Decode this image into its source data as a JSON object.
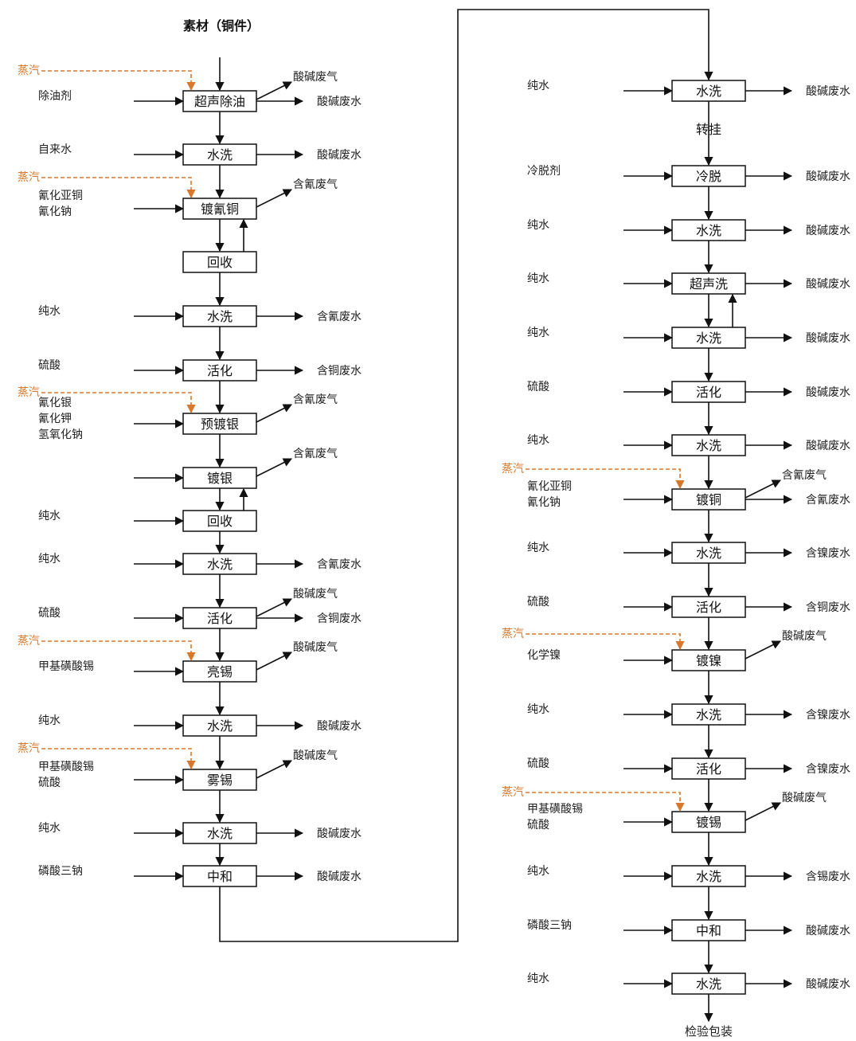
{
  "title": "素材（铜件）",
  "end_label": "检验包装",
  "steam_label": "蒸汽",
  "transfer_label": "转挂",
  "colors": {
    "line": "#111111",
    "steam": "#d9782d"
  },
  "left_column": [
    {
      "process": "超声除油",
      "inputs": [
        "除油剂"
      ],
      "outputs": [
        "酸碱废气",
        "酸碱废水"
      ],
      "steam": true
    },
    {
      "process": "水洗",
      "inputs": [
        "自来水"
      ],
      "outputs": [
        "酸碱废水"
      ]
    },
    {
      "process": "镀氰铜",
      "inputs": [
        "氰化亚铜",
        "氰化钠"
      ],
      "outputs": [
        "含氰废气"
      ],
      "steam": true
    },
    {
      "process": "回收",
      "inputs": [],
      "outputs": []
    },
    {
      "process": "水洗",
      "inputs": [
        "纯水"
      ],
      "outputs": [
        "含氰废水"
      ]
    },
    {
      "process": "活化",
      "inputs": [
        "硫酸"
      ],
      "outputs": [
        "含铜废水"
      ]
    },
    {
      "process": "预镀银",
      "inputs": [
        "氰化银",
        "氰化钾",
        "氢氧化钠"
      ],
      "outputs": [
        "含氰废气"
      ],
      "steam": true
    },
    {
      "process": "镀银",
      "inputs": [],
      "outputs": [
        "含氰废气"
      ]
    },
    {
      "process": "回收",
      "inputs": [
        "纯水"
      ],
      "outputs": []
    },
    {
      "process": "水洗",
      "inputs": [
        "纯水"
      ],
      "outputs": [
        "含氰废水"
      ]
    },
    {
      "process": "活化",
      "inputs": [
        "硫酸"
      ],
      "outputs": [
        "酸碱废气",
        "含铜废水"
      ]
    },
    {
      "process": "亮锡",
      "inputs": [
        "甲基磺酸锡"
      ],
      "outputs": [
        "酸碱废气"
      ],
      "steam": true
    },
    {
      "process": "水洗",
      "inputs": [
        "纯水"
      ],
      "outputs": [
        "酸碱废水"
      ]
    },
    {
      "process": "雾锡",
      "inputs": [
        "甲基磺酸锡",
        "硫酸"
      ],
      "outputs": [
        "酸碱废气"
      ],
      "steam": true
    },
    {
      "process": "水洗",
      "inputs": [
        "纯水"
      ],
      "outputs": [
        "酸碱废水"
      ]
    },
    {
      "process": "中和",
      "inputs": [
        "磷酸三钠"
      ],
      "outputs": [
        "酸碱废水"
      ]
    }
  ],
  "right_column": [
    {
      "process": "水洗",
      "inputs": [
        "纯水"
      ],
      "outputs": [
        "酸碱废水"
      ]
    },
    {
      "process": "冷脱",
      "inputs": [
        "冷脱剂"
      ],
      "outputs": [
        "酸碱废水"
      ]
    },
    {
      "process": "水洗",
      "inputs": [
        "纯水"
      ],
      "outputs": [
        "酸碱废水"
      ]
    },
    {
      "process": "超声洗",
      "inputs": [
        "纯水"
      ],
      "outputs": [
        "酸碱废水"
      ]
    },
    {
      "process": "水洗",
      "inputs": [
        "纯水"
      ],
      "outputs": [
        "酸碱废水"
      ]
    },
    {
      "process": "活化",
      "inputs": [
        "硫酸"
      ],
      "outputs": [
        "酸碱废水"
      ]
    },
    {
      "process": "水洗",
      "inputs": [
        "纯水"
      ],
      "outputs": [
        "酸碱废水"
      ]
    },
    {
      "process": "镀铜",
      "inputs": [
        "氰化亚铜",
        "氰化钠"
      ],
      "outputs": [
        "含氰废气",
        "含氰废水"
      ],
      "steam": true
    },
    {
      "process": "水洗",
      "inputs": [
        "纯水"
      ],
      "outputs": [
        "含镍废水"
      ]
    },
    {
      "process": "活化",
      "inputs": [
        "硫酸"
      ],
      "outputs": [
        "含铜废水"
      ]
    },
    {
      "process": "镀镍",
      "inputs": [
        "化学镍"
      ],
      "outputs": [
        "酸碱废气"
      ],
      "steam": true
    },
    {
      "process": "水洗",
      "inputs": [
        "纯水"
      ],
      "outputs": [
        "含镍废水"
      ]
    },
    {
      "process": "活化",
      "inputs": [
        "硫酸"
      ],
      "outputs": [
        "含镍废水"
      ]
    },
    {
      "process": "镀锡",
      "inputs": [
        "甲基磺酸锡",
        "硫酸"
      ],
      "outputs": [
        "酸碱废气"
      ],
      "steam": true
    },
    {
      "process": "水洗",
      "inputs": [
        "纯水"
      ],
      "outputs": [
        "含锡废水"
      ]
    },
    {
      "process": "中和",
      "inputs": [
        "磷酸三钠"
      ],
      "outputs": [
        "酸碱废水"
      ]
    },
    {
      "process": "水洗",
      "inputs": [
        "纯水"
      ],
      "outputs": [
        "酸碱废水"
      ]
    }
  ]
}
